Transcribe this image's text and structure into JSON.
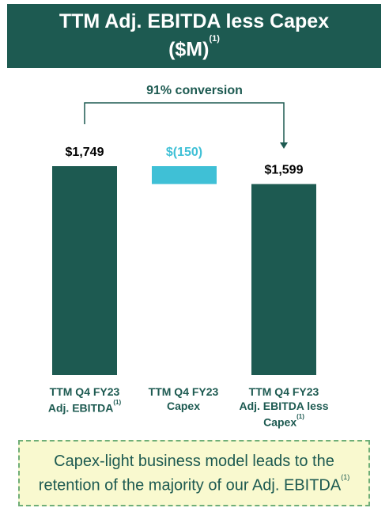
{
  "title": {
    "line1": "TTM Adj. EBITDA less Capex",
    "line2": "($M)",
    "footnote": "(1)"
  },
  "conversion_label": "91% conversion",
  "chart_data": {
    "type": "bar",
    "subtype": "waterfall",
    "categories": [
      "TTM Q4 FY23 Adj. EBITDA(1)",
      "TTM Q4 FY23 Capex",
      "TTM Q4 FY23 Adj. EBITDA less Capex(1)"
    ],
    "values": [
      1749,
      -150,
      1599
    ],
    "value_labels": [
      "$1,749",
      "$(150)",
      "$1,599"
    ],
    "colors": [
      "#1d5a51",
      "#3fc0d6",
      "#1d5a51"
    ],
    "title": "TTM Adj. EBITDA less Capex ($M)(1)",
    "annotation": "91% conversion",
    "ylim": [
      0,
      1749
    ]
  },
  "category_labels": [
    {
      "line1": "TTM Q4 FY23",
      "line2": "Adj. EBITDA",
      "line3": "",
      "footnote": "(1)"
    },
    {
      "line1": "TTM Q4 FY23",
      "line2": "Capex",
      "line3": "",
      "footnote": ""
    },
    {
      "line1": "TTM Q4 FY23",
      "line2": "Adj. EBITDA less",
      "line3": "Capex",
      "footnote": "(1)"
    }
  ],
  "takeaway": {
    "text": "Capex-light business model leads to the retention of the majority of our Adj. EBITDA",
    "footnote": "(1)"
  },
  "colors": {
    "dark_green": "#1d5a51",
    "light_blue": "#3fc0d6",
    "takeaway_bg": "#f9f9cf",
    "takeaway_border": "#6fae77"
  }
}
